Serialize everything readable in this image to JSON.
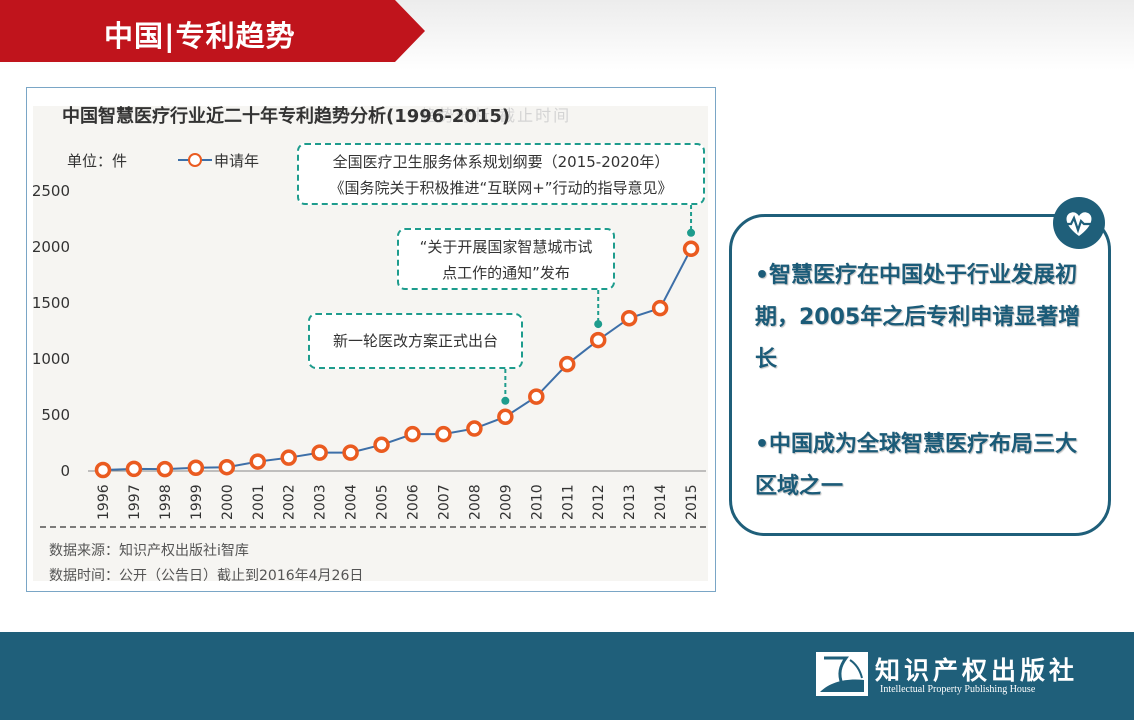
{
  "slide": {
    "title": "中国|专利趋势",
    "ghost_text": "趋势分析 截止时间"
  },
  "chart_data": {
    "type": "line",
    "title": "中国智慧医疗行业近二十年专利趋势分析(1996-2015)",
    "unit_label": "单位：件",
    "legend": [
      "申请年"
    ],
    "categories": [
      "1996",
      "1997",
      "1998",
      "1999",
      "2000",
      "2001",
      "2002",
      "2003",
      "2004",
      "2005",
      "2006",
      "2007",
      "2008",
      "2009",
      "2010",
      "2011",
      "2012",
      "2013",
      "2014",
      "2015"
    ],
    "series": [
      {
        "name": "申请年",
        "values": [
          0,
          10,
          8,
          20,
          25,
          75,
          110,
          155,
          155,
          225,
          320,
          320,
          370,
          475,
          655,
          945,
          1160,
          1355,
          1445,
          1975
        ],
        "line_color": "#3d6fa8",
        "marker_color": "#ea5b20"
      }
    ],
    "y_ticks": [
      "0",
      "500",
      "1000",
      "1500",
      "2000",
      "2500"
    ],
    "ylim": [
      0,
      2500
    ],
    "grid": false,
    "annotations": [
      {
        "lines": [
          "全国医疗卫生服务体系规划纲要（2015-2020年）",
          "《国务院关于积极推进“互联网+”行动的指导意见》"
        ],
        "year": "2015"
      },
      {
        "lines": [
          "“关于开展国家智慧城市试",
          "点工作的通知”发布"
        ],
        "year": "2012"
      },
      {
        "lines": [
          "新一轮医改方案正式出台"
        ],
        "year": "2009"
      }
    ],
    "sources": [
      "数据来源：知识产权出版社i智库",
      "数据时间：公开（公告日）截止到2016年4月26日"
    ]
  },
  "summary": {
    "points": [
      "•智慧医疗在中国处于行业发展初期，2005年之后专利申请显著增长",
      "•中国成为全球智慧医疗布局三大区域之一"
    ],
    "icon": "heart-pulse-icon"
  },
  "footer": {
    "publisher_cn": "知识产权出版社",
    "publisher_en": "Intellectual Property Publishing House",
    "logo": "publisher-logo-icon"
  },
  "colors": {
    "banner_red": "#c0141c",
    "teal": "#1f5f7a",
    "callout_border": "#1e9c8d",
    "marker_orange": "#ea5b20",
    "line_blue": "#3d6fa8"
  }
}
